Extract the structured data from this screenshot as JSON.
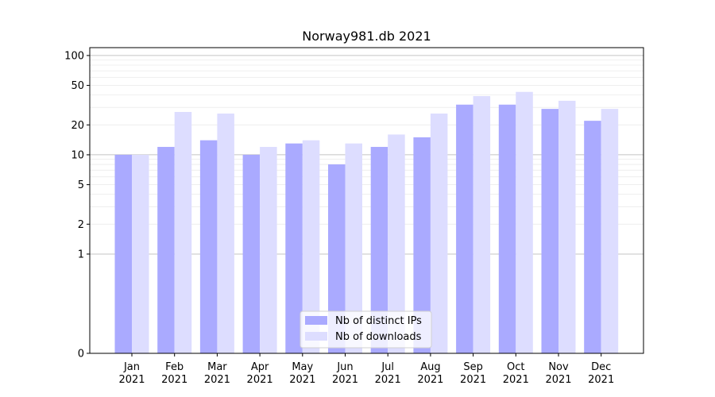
{
  "chart_data": {
    "type": "bar",
    "title": "Norway981.db 2021",
    "xlabel": "",
    "ylabel": "",
    "y_scale": "symlog",
    "ylim": [
      0,
      120
    ],
    "y_ticks": [
      0,
      1,
      2,
      5,
      10,
      20,
      50,
      100
    ],
    "y_tick_labels": [
      "0",
      "1",
      "2",
      "5",
      "10",
      "20",
      "50",
      "100"
    ],
    "grid": true,
    "legend_position": "bottom-center",
    "categories": [
      "Jan\n2021",
      "Feb\n2021",
      "Mar\n2021",
      "Apr\n2021",
      "May\n2021",
      "Jun\n2021",
      "Jul\n2021",
      "Aug\n2021",
      "Sep\n2021",
      "Oct\n2021",
      "Nov\n2021",
      "Dec\n2021"
    ],
    "category_lines": [
      [
        "Jan",
        "2021"
      ],
      [
        "Feb",
        "2021"
      ],
      [
        "Mar",
        "2021"
      ],
      [
        "Apr",
        "2021"
      ],
      [
        "May",
        "2021"
      ],
      [
        "Jun",
        "2021"
      ],
      [
        "Jul",
        "2021"
      ],
      [
        "Aug",
        "2021"
      ],
      [
        "Sep",
        "2021"
      ],
      [
        "Oct",
        "2021"
      ],
      [
        "Nov",
        "2021"
      ],
      [
        "Dec",
        "2021"
      ]
    ],
    "series": [
      {
        "name": "Nb of distinct IPs",
        "color": "#aaaaff",
        "values": [
          10,
          12,
          14,
          10,
          13,
          8,
          12,
          15,
          32,
          32,
          29,
          22
        ]
      },
      {
        "name": "Nb of downloads",
        "color": "#ddddff",
        "values": [
          10,
          27,
          26,
          12,
          14,
          13,
          16,
          26,
          39,
          43,
          35,
          29
        ]
      }
    ]
  }
}
